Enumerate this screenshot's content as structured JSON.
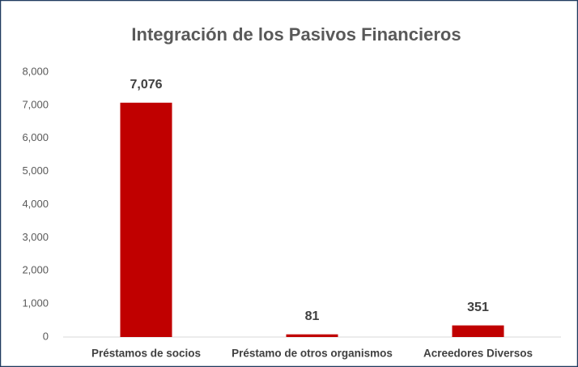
{
  "chart_data": {
    "type": "bar",
    "title": "Integración de los Pasivos Financieros",
    "categories": [
      "Préstamos de socios",
      "Préstamo de otros organismos",
      "Acreedores Diversos"
    ],
    "values": [
      7076,
      81,
      351
    ],
    "value_labels": [
      "7,076",
      "81",
      "351"
    ],
    "color": "#c00000",
    "ylim": [
      0,
      8000
    ],
    "yticks": [
      0,
      {
        "value": 1000,
        "label": "1,000"
      },
      {
        "value": 2000,
        "label": "2,000"
      },
      {
        "value": 3000,
        "label": "3,000"
      },
      {
        "value": 4000,
        "label": "4,000"
      },
      {
        "value": 5000,
        "label": "5,000"
      },
      {
        "value": 6000,
        "label": "6,000"
      },
      {
        "value": 7000,
        "label": "7,000"
      },
      {
        "value": 8000,
        "label": "8,000"
      }
    ],
    "grid": false
  }
}
